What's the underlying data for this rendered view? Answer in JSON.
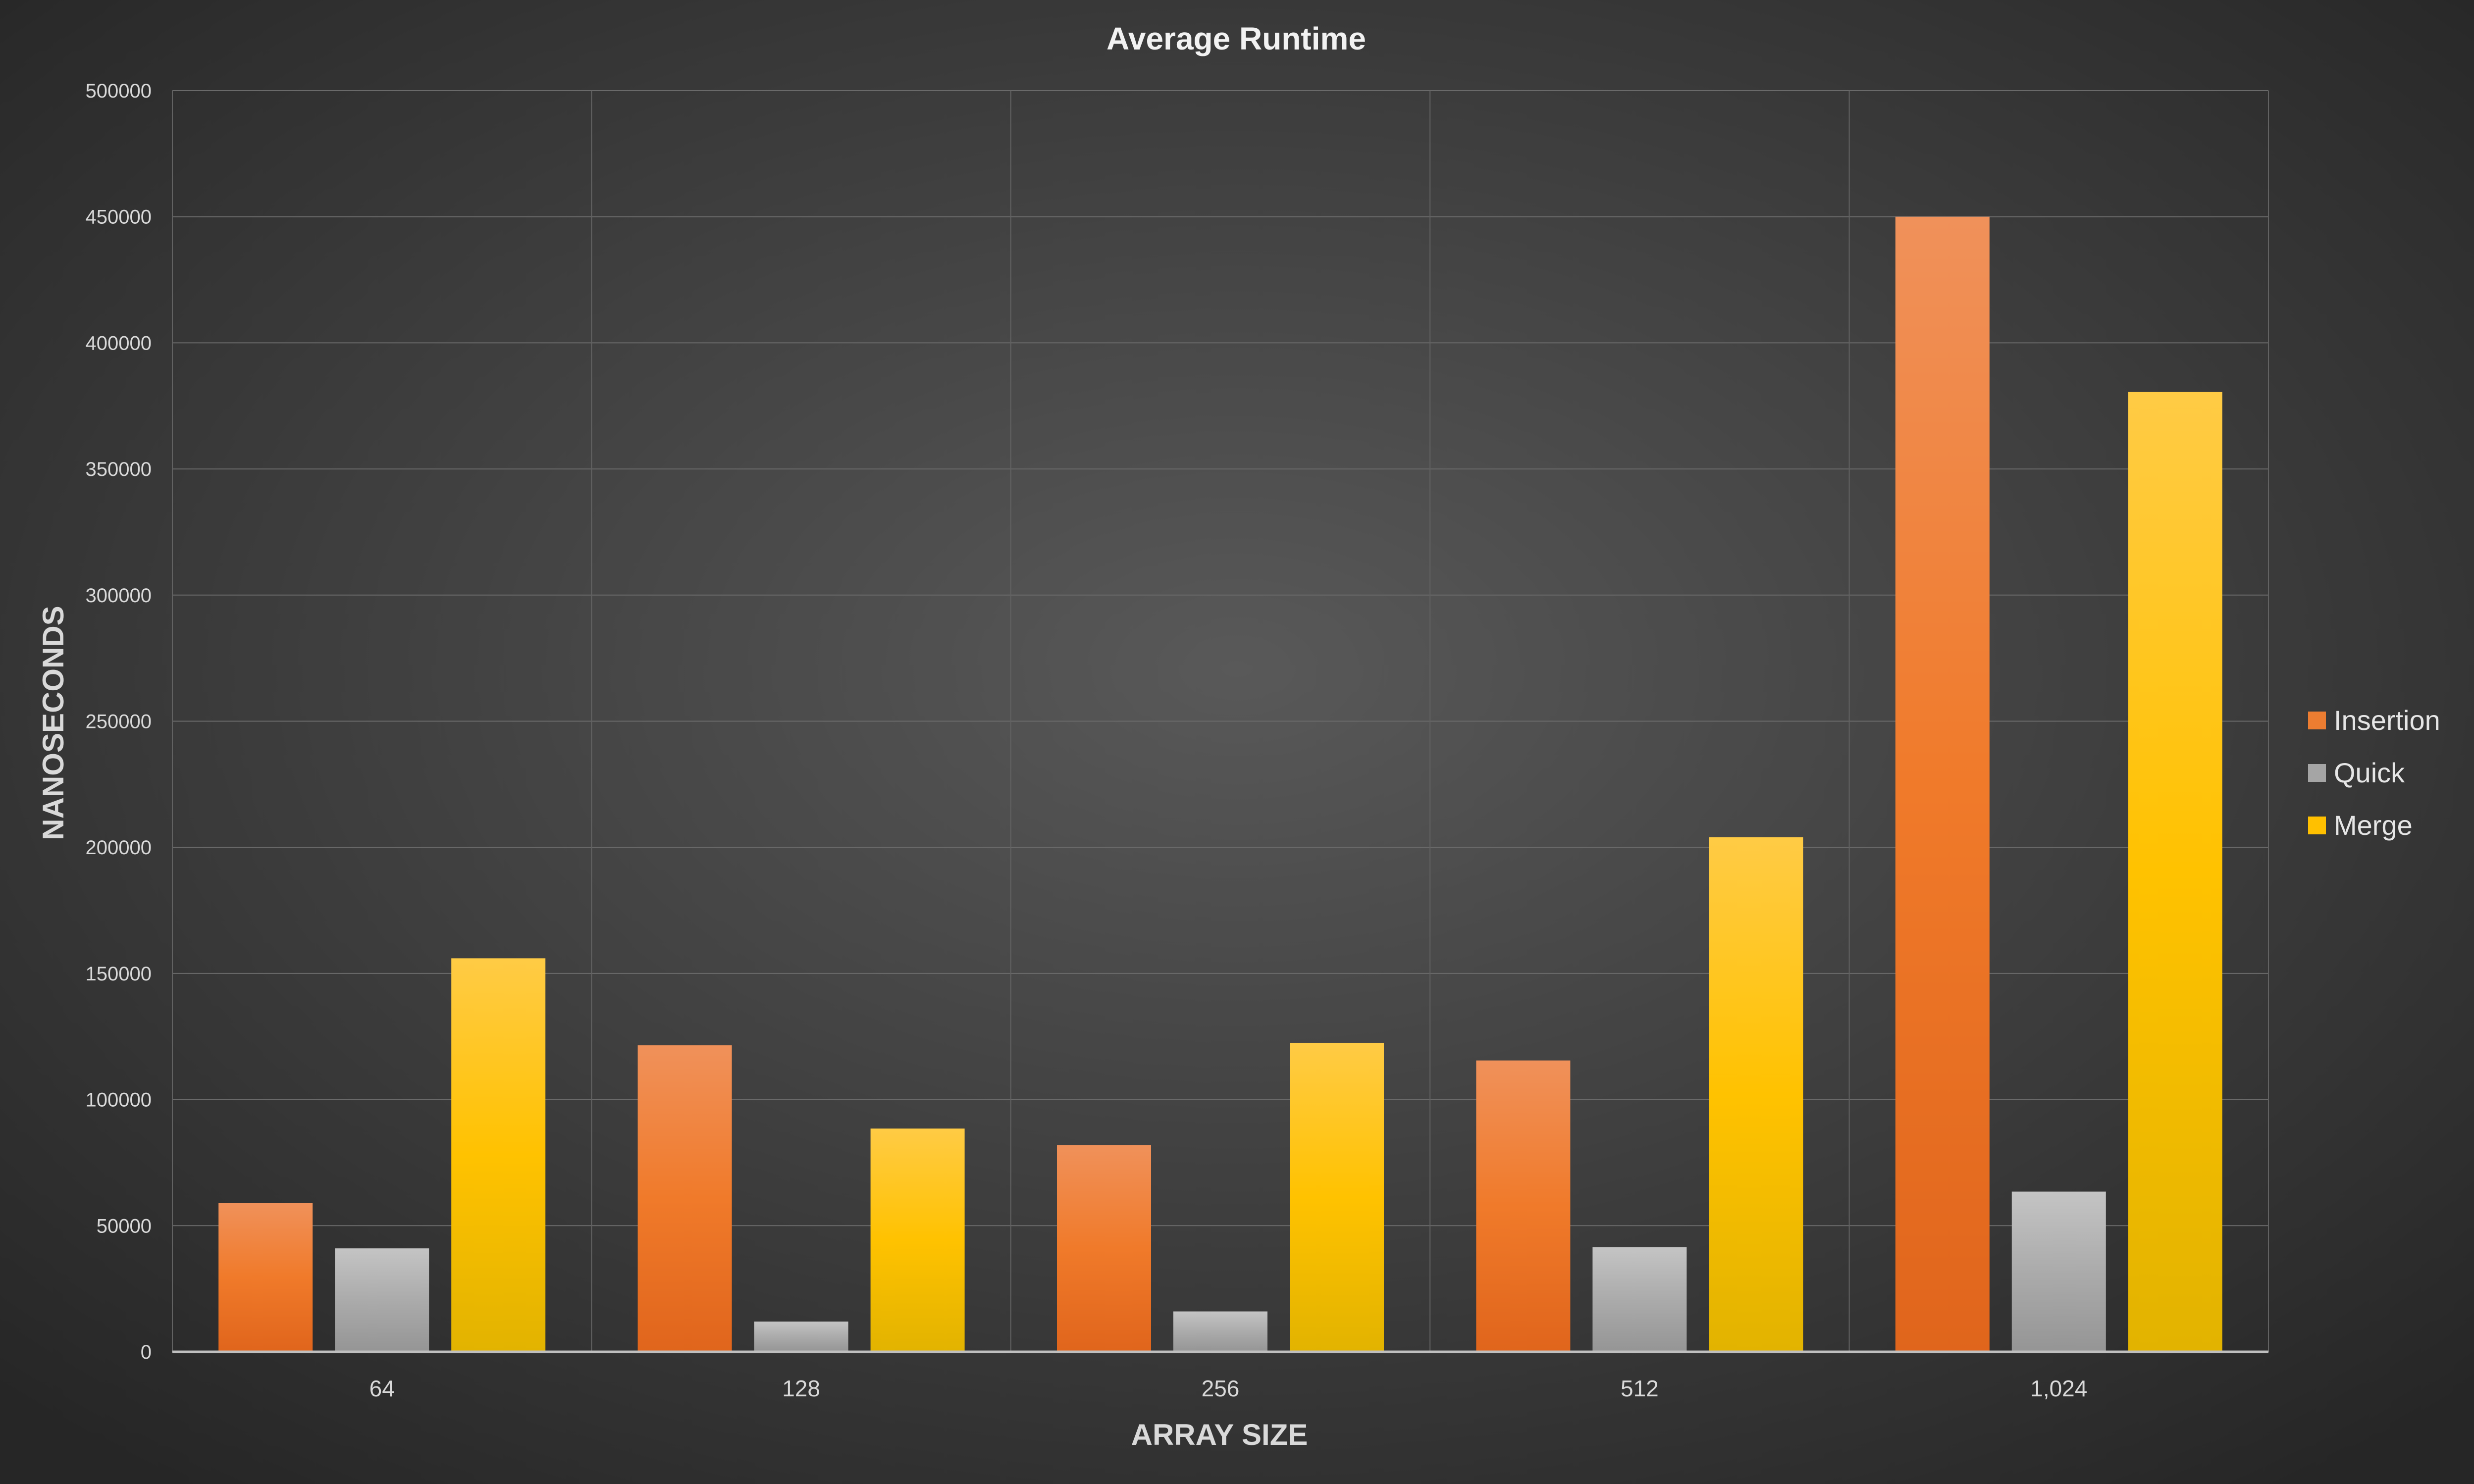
{
  "chart_data": {
    "type": "bar",
    "title": "Average Runtime",
    "xlabel": "ARRAY SIZE",
    "ylabel": "NANOSECONDS",
    "categories": [
      "64",
      "128",
      "256",
      "512",
      "1,024"
    ],
    "ylim": [
      0,
      500000
    ],
    "yticks": [
      0,
      50000,
      100000,
      150000,
      200000,
      250000,
      300000,
      350000,
      400000,
      450000,
      500000
    ],
    "grid": true,
    "legend_position": "right",
    "series": [
      {
        "name": "Insertion",
        "color": "#ed7d31",
        "values": [
          59000,
          121500,
          82000,
          115500,
          450000
        ]
      },
      {
        "name": "Quick",
        "color": "#a5a5a5",
        "values": [
          41000,
          12000,
          16000,
          41500,
          63500
        ]
      },
      {
        "name": "Merge",
        "color": "#ffc000",
        "values": [
          156000,
          88500,
          122500,
          204000,
          380500
        ]
      }
    ]
  }
}
